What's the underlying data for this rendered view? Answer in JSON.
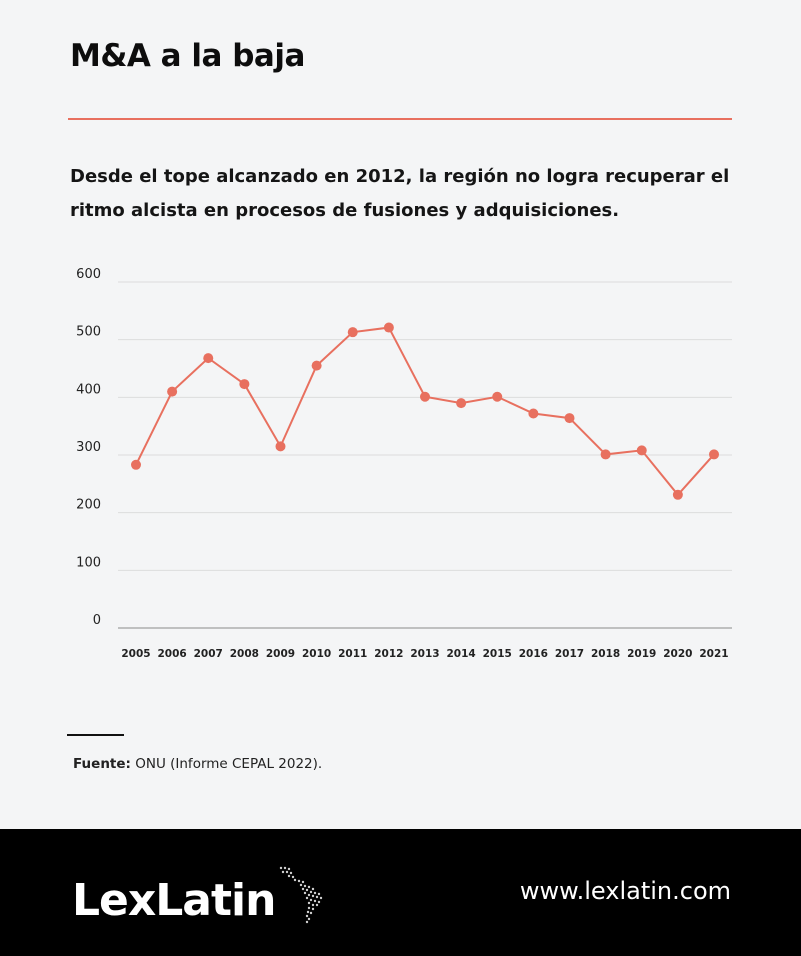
{
  "header": {
    "title": "M&A a la baja",
    "subtitle": "Desde el tope alcanzado en 2012, la región no logra recuperar el ritmo alcista en procesos de fusiones y adquisiciones."
  },
  "source": {
    "label": "Fuente:",
    "text": "ONU (Informe CEPAL 2022)."
  },
  "footer": {
    "logo": "LexLatin",
    "url": "www.lexlatin.com"
  },
  "colors": {
    "accent": "#e8705f",
    "footer_bg": "#000000",
    "background": "#f4f5f6"
  },
  "icons": {
    "logo_map": "latin-america-map-icon"
  },
  "chart_data": {
    "type": "line",
    "title": "",
    "xlabel": "",
    "ylabel": "",
    "categories": [
      "2005",
      "2006",
      "2007",
      "2008",
      "2009",
      "2010",
      "2011",
      "2012",
      "2013",
      "2014",
      "2015",
      "2016",
      "2017",
      "2018",
      "2019",
      "2020",
      "2021"
    ],
    "series": [
      {
        "values": [
          283,
          410,
          468,
          423,
          315,
          455,
          513,
          521,
          401,
          390,
          401,
          372,
          364,
          301,
          308,
          231,
          301
        ]
      }
    ],
    "ylim": [
      0,
      600
    ],
    "yticks": [
      0,
      100,
      200,
      300,
      400,
      500,
      600
    ],
    "grid": true,
    "legend": "none"
  }
}
